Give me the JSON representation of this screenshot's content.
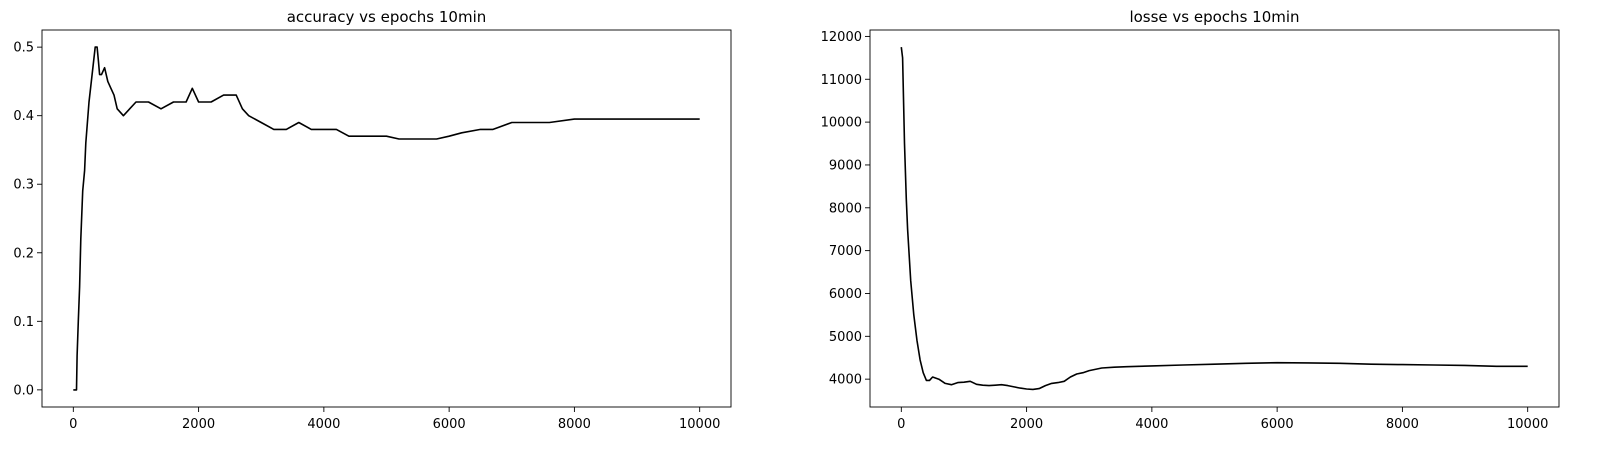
{
  "chart_data": [
    {
      "type": "line",
      "title": "accuracy vs epochs 10min",
      "xlabel": "",
      "ylabel": "",
      "xlim": [
        -500,
        10500
      ],
      "ylim": [
        -0.025,
        0.525
      ],
      "xticks": [
        0,
        2000,
        4000,
        6000,
        8000,
        10000
      ],
      "xtick_labels": [
        "0",
        "2000",
        "4000",
        "6000",
        "8000",
        "10000"
      ],
      "yticks": [
        0.0,
        0.1,
        0.2,
        0.3,
        0.4,
        0.5
      ],
      "ytick_labels": [
        "0.0",
        "0.1",
        "0.2",
        "0.3",
        "0.4",
        "0.5"
      ],
      "grid": false,
      "line_color": "#000000",
      "series": [
        {
          "x": [
            0,
            50,
            60,
            80,
            100,
            120,
            150,
            180,
            200,
            250,
            300,
            350,
            380,
            400,
            420,
            450,
            500,
            550,
            600,
            650,
            700,
            800,
            900,
            1000,
            1100,
            1200,
            1400,
            1600,
            1800,
            1900,
            2000,
            2200,
            2400,
            2600,
            2700,
            2800,
            3000,
            3200,
            3400,
            3600,
            3800,
            4000,
            4200,
            4400,
            4600,
            4800,
            5000,
            5200,
            5400,
            5600,
            5800,
            6000,
            6200,
            6500,
            6700,
            7000,
            7300,
            7600,
            8000,
            8500,
            9000,
            9500,
            10000
          ],
          "y": [
            0.0,
            0.0,
            0.05,
            0.1,
            0.15,
            0.22,
            0.29,
            0.32,
            0.36,
            0.42,
            0.46,
            0.5,
            0.5,
            0.48,
            0.46,
            0.46,
            0.47,
            0.45,
            0.44,
            0.43,
            0.41,
            0.4,
            0.41,
            0.42,
            0.42,
            0.42,
            0.41,
            0.42,
            0.42,
            0.44,
            0.42,
            0.42,
            0.43,
            0.43,
            0.41,
            0.4,
            0.39,
            0.38,
            0.38,
            0.39,
            0.38,
            0.38,
            0.38,
            0.37,
            0.37,
            0.37,
            0.37,
            0.366,
            0.366,
            0.366,
            0.366,
            0.37,
            0.375,
            0.38,
            0.38,
            0.39,
            0.39,
            0.39,
            0.395,
            0.395,
            0.395,
            0.395,
            0.395
          ]
        }
      ]
    },
    {
      "type": "line",
      "title": "losse vs epochs 10min",
      "xlabel": "",
      "ylabel": "",
      "xlim": [
        -500,
        10500
      ],
      "ylim": [
        3350,
        12150
      ],
      "xticks": [
        0,
        2000,
        4000,
        6000,
        8000,
        10000
      ],
      "xtick_labels": [
        "0",
        "2000",
        "4000",
        "6000",
        "8000",
        "10000"
      ],
      "yticks": [
        4000,
        5000,
        6000,
        7000,
        8000,
        9000,
        10000,
        11000,
        12000
      ],
      "ytick_labels": [
        "4000",
        "5000",
        "6000",
        "7000",
        "8000",
        "9000",
        "10000",
        "11000",
        "12000"
      ],
      "grid": false,
      "line_color": "#000000",
      "series": [
        {
          "x": [
            0,
            20,
            50,
            80,
            100,
            150,
            200,
            250,
            300,
            350,
            400,
            450,
            500,
            600,
            700,
            800,
            900,
            1000,
            1100,
            1200,
            1300,
            1400,
            1500,
            1600,
            1700,
            1800,
            1900,
            2000,
            2100,
            2200,
            2300,
            2400,
            2500,
            2600,
            2700,
            2800,
            2900,
            3000,
            3200,
            3400,
            3600,
            3800,
            4000,
            4500,
            5000,
            5500,
            6000,
            6500,
            7000,
            7500,
            8000,
            8500,
            9000,
            9500,
            10000
          ],
          "y": [
            11750,
            11500,
            9500,
            8200,
            7500,
            6300,
            5500,
            4900,
            4450,
            4150,
            3970,
            3970,
            4050,
            4000,
            3900,
            3870,
            3920,
            3930,
            3950,
            3880,
            3860,
            3850,
            3860,
            3870,
            3850,
            3820,
            3790,
            3770,
            3760,
            3780,
            3850,
            3900,
            3920,
            3950,
            4050,
            4120,
            4150,
            4200,
            4260,
            4280,
            4290,
            4300,
            4310,
            4330,
            4350,
            4370,
            4385,
            4380,
            4370,
            4350,
            4340,
            4330,
            4320,
            4300,
            4300
          ]
        }
      ]
    }
  ]
}
